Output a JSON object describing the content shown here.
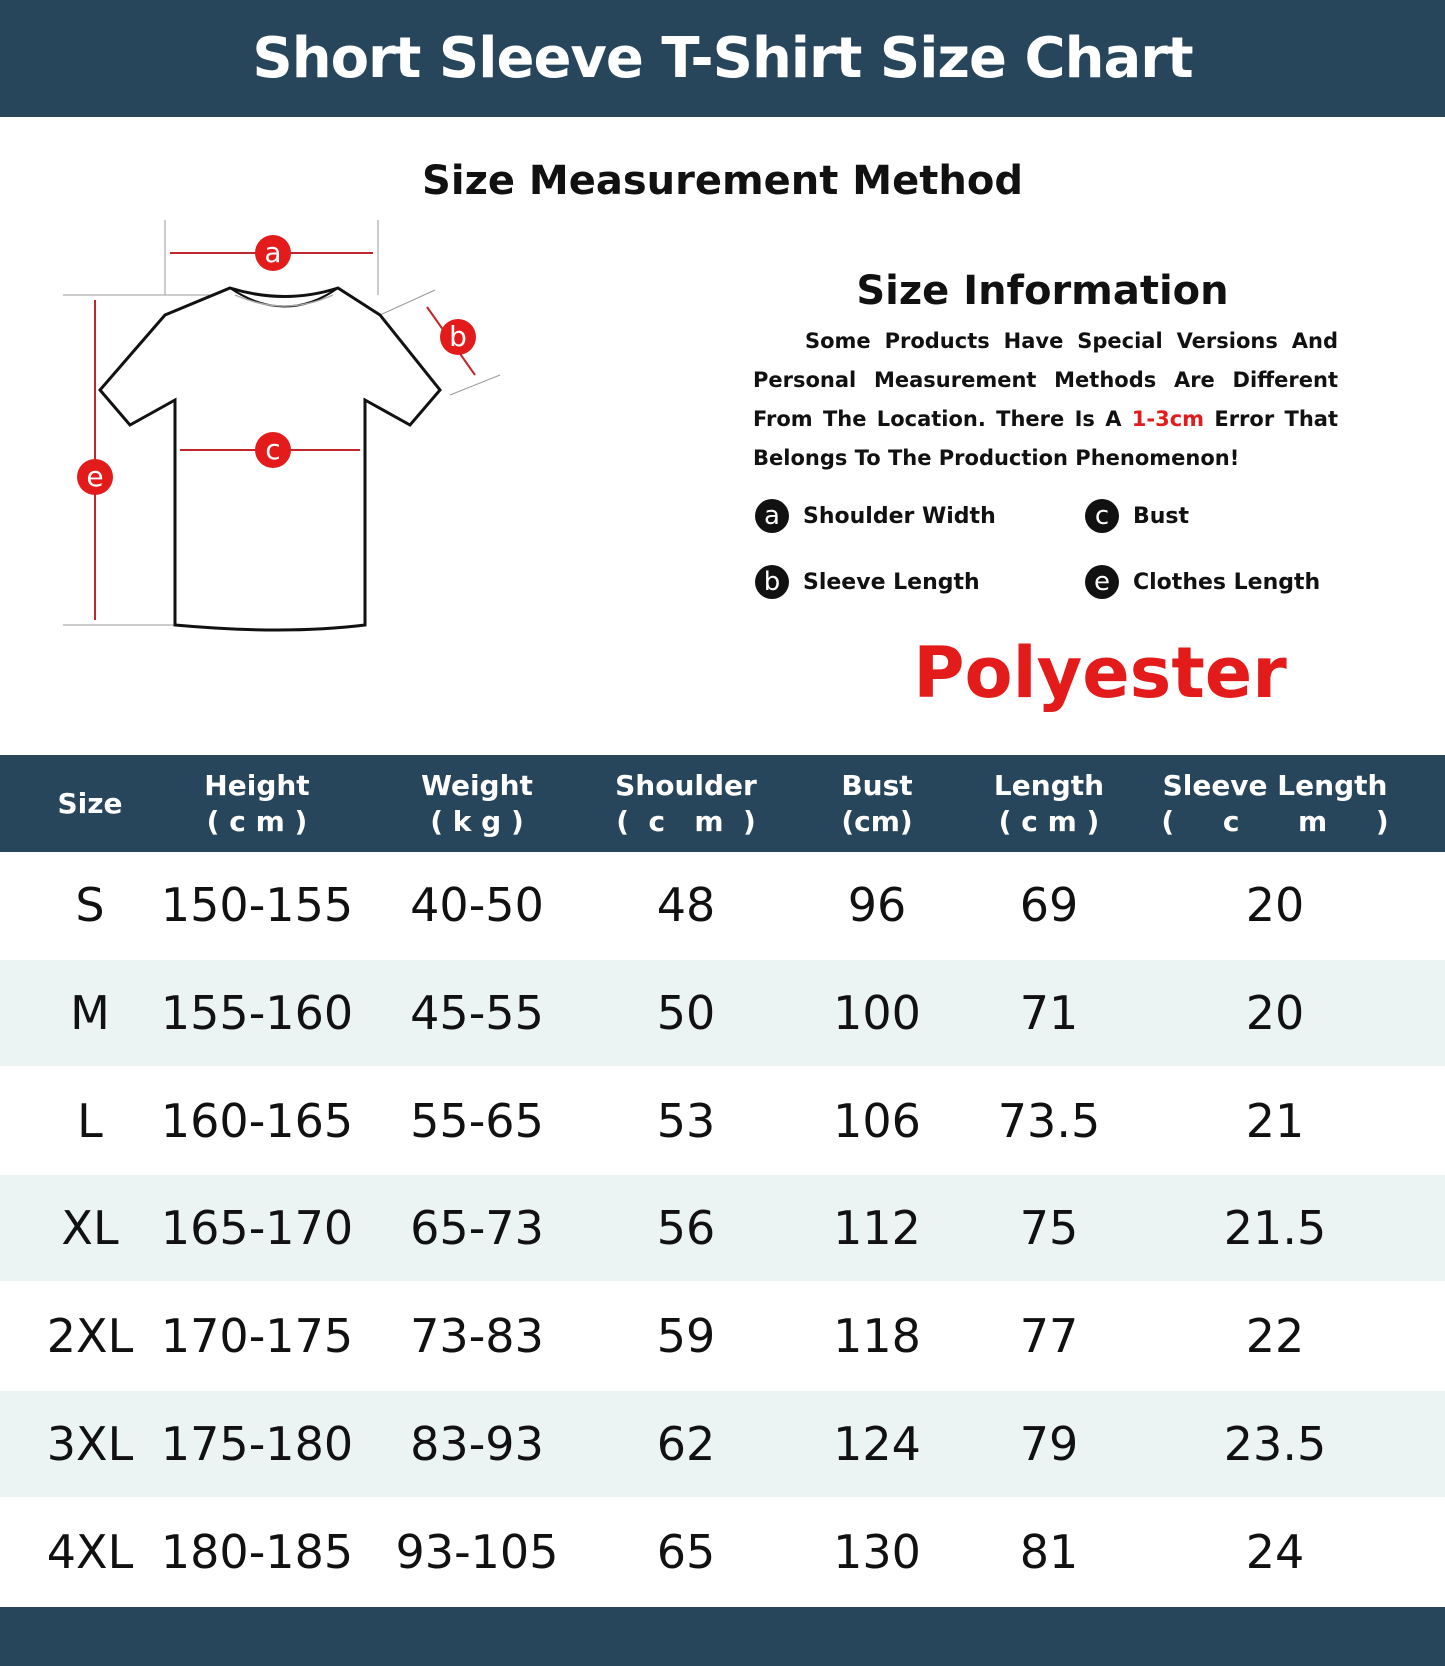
{
  "header": {
    "title": "Short Sleeve T-Shirt Size Chart"
  },
  "method": {
    "title": "Size Measurement Method",
    "markers": [
      "a",
      "b",
      "c",
      "e"
    ]
  },
  "info": {
    "title": "Size Information",
    "text_before": "Some Products Have Special Versions And Personal Measurement Methods Are Different From The Location. There Is A ",
    "text_highlight": "1-3cm",
    "text_after": " Error That Belongs To The Production Phenomenon!",
    "legend": [
      {
        "key": "a",
        "label": "Shoulder Width"
      },
      {
        "key": "c",
        "label": "Bust"
      },
      {
        "key": "b",
        "label": "Sleeve Length"
      },
      {
        "key": "e",
        "label": "Clothes Length"
      }
    ]
  },
  "material": "Polyester",
  "colors": {
    "header_bg": "#27465b",
    "accent_red": "#e31b1b",
    "stripe": "#ecf3f3"
  },
  "table": {
    "columns": [
      {
        "name": "Size",
        "unit": ""
      },
      {
        "name": "Height",
        "unit": "( c m )"
      },
      {
        "name": "Weight",
        "unit": "( k g )"
      },
      {
        "name": "Shoulder",
        "unit": "(  c   m  )"
      },
      {
        "name": "Bust",
        "unit": "(cm)"
      },
      {
        "name": "Length",
        "unit": "( c m )"
      },
      {
        "name": "Sleeve Length",
        "unit": "(     c      m     )"
      }
    ],
    "rows": [
      [
        "S",
        "150-155",
        "40-50",
        "48",
        "96",
        "69",
        "20"
      ],
      [
        "M",
        "155-160",
        "45-55",
        "50",
        "100",
        "71",
        "20"
      ],
      [
        "L",
        "160-165",
        "55-65",
        "53",
        "106",
        "73.5",
        "21"
      ],
      [
        "XL",
        "165-170",
        "65-73",
        "56",
        "112",
        "75",
        "21.5"
      ],
      [
        "2XL",
        "170-175",
        "73-83",
        "59",
        "118",
        "77",
        "22"
      ],
      [
        "3XL",
        "175-180",
        "83-93",
        "62",
        "124",
        "79",
        "23.5"
      ],
      [
        "4XL",
        "180-185",
        "93-105",
        "65",
        "130",
        "81",
        "24"
      ]
    ]
  }
}
